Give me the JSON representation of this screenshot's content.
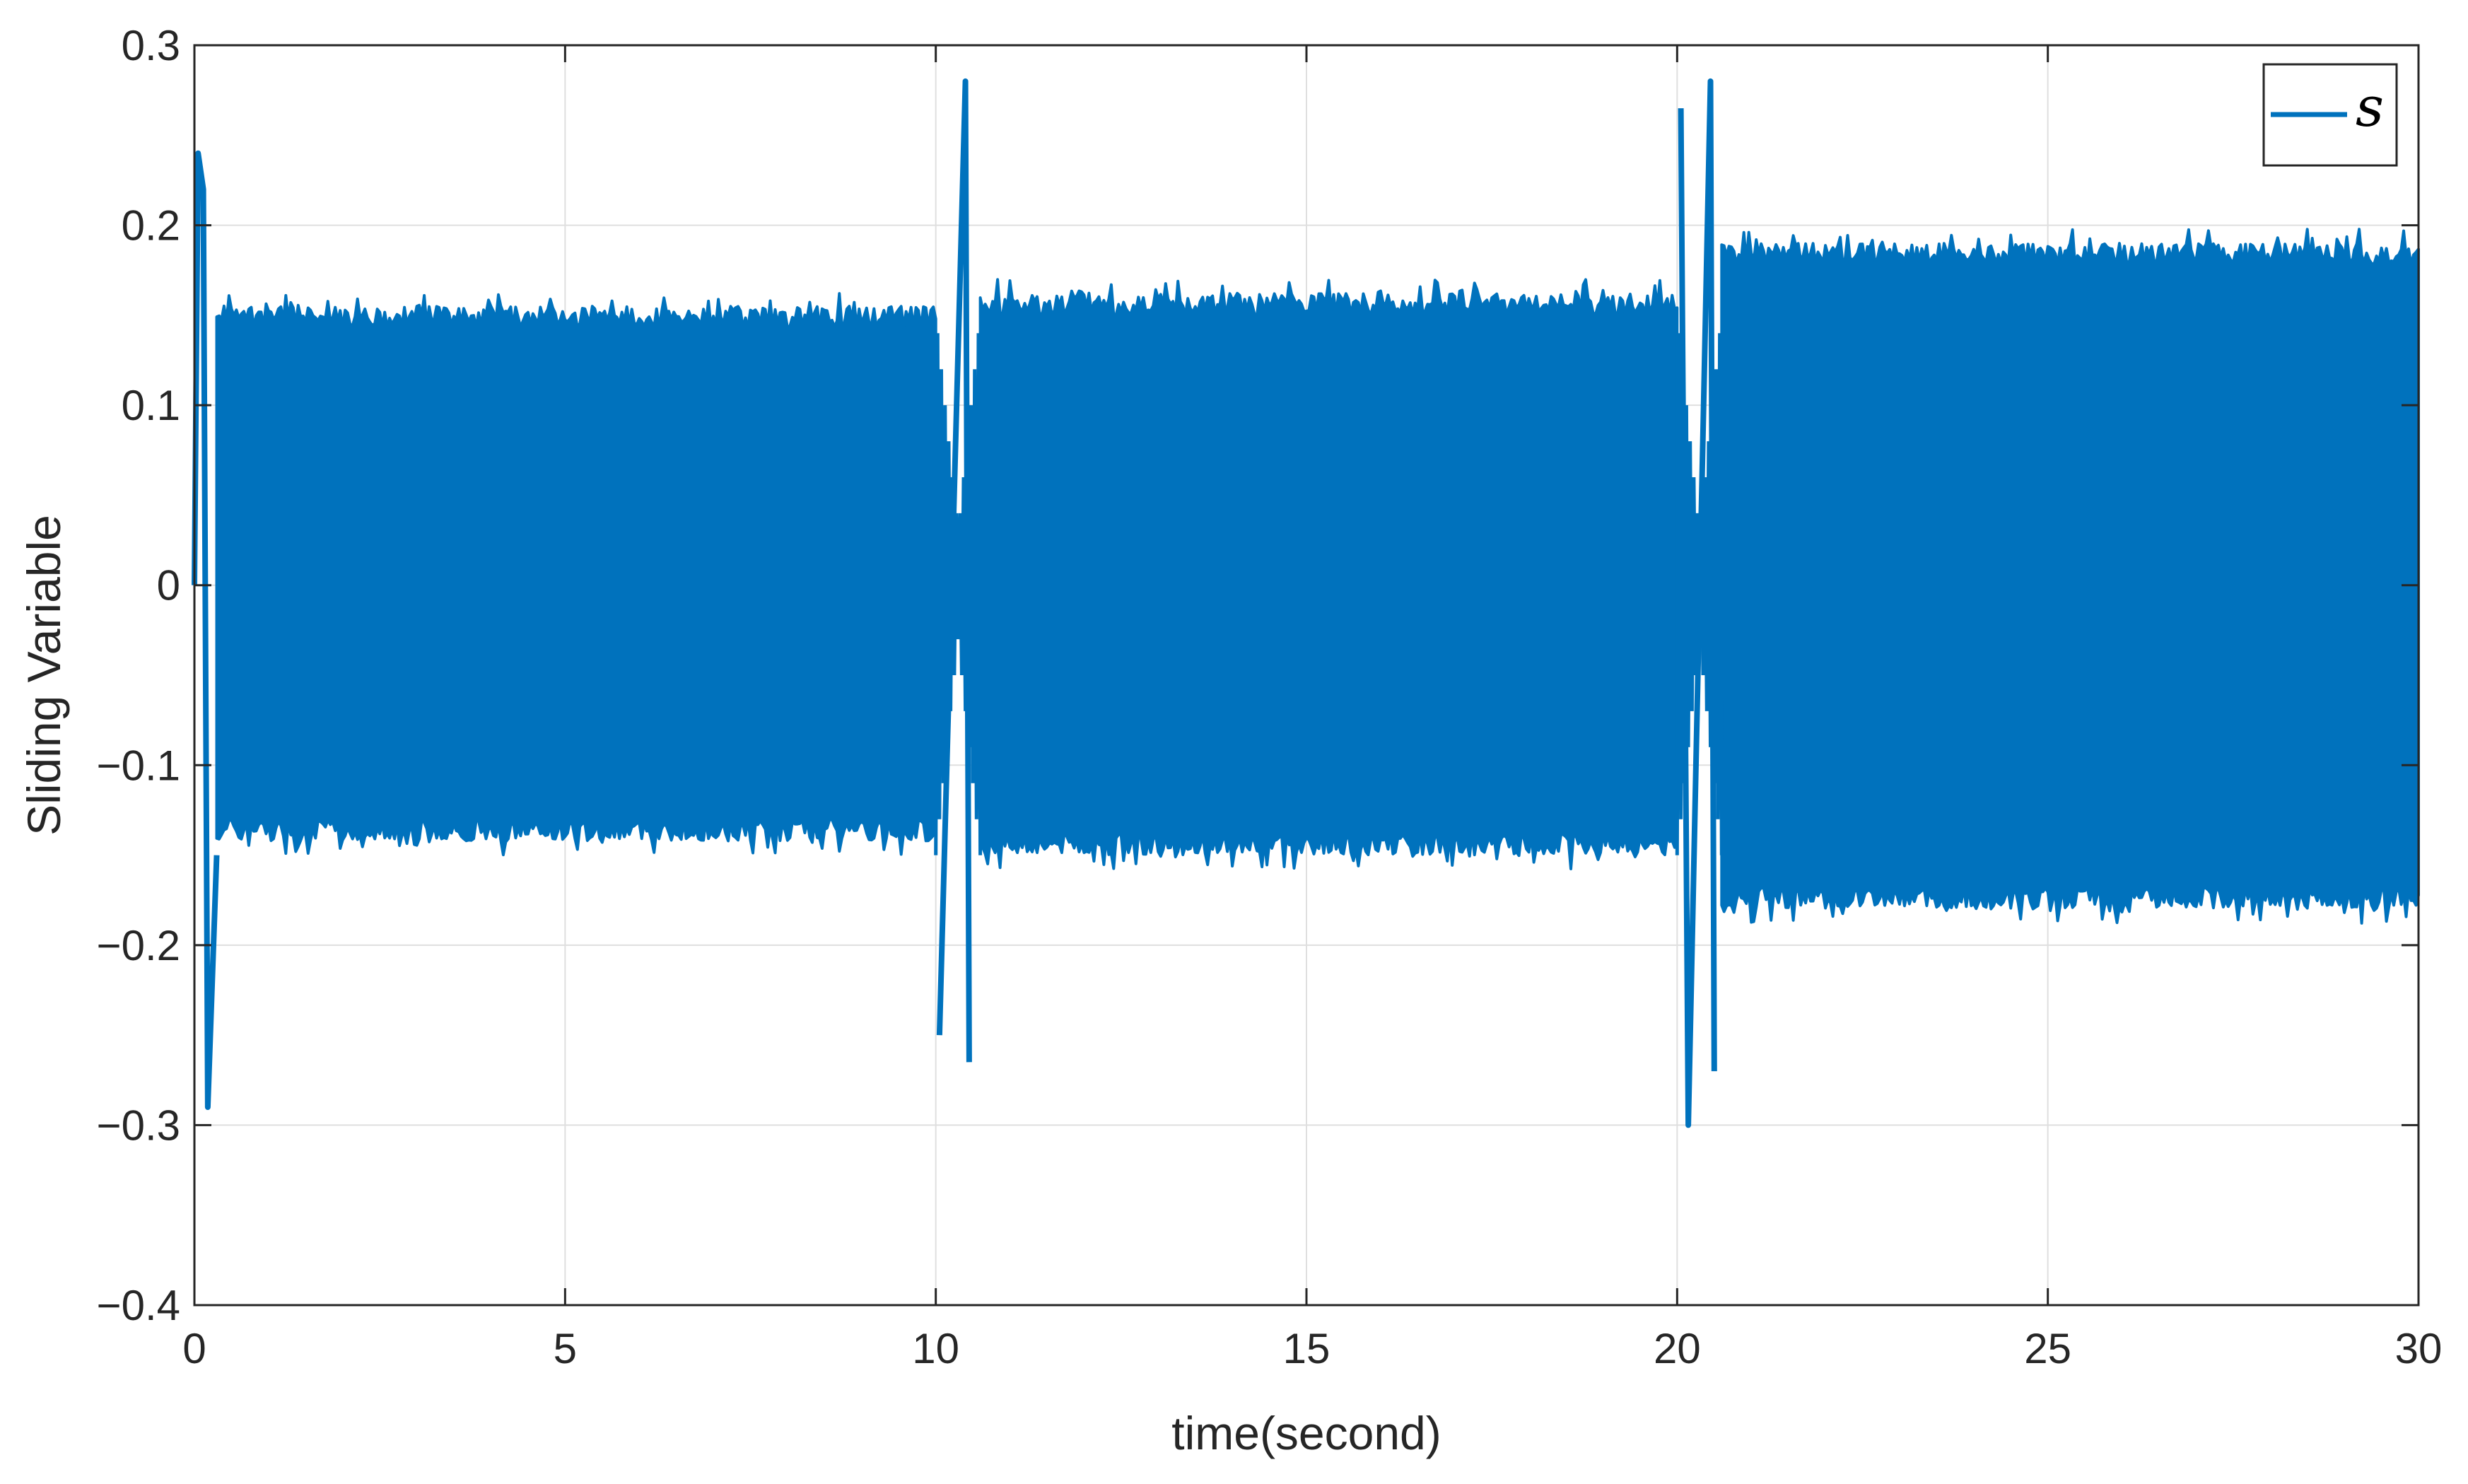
{
  "chart_data": {
    "type": "line",
    "title": "",
    "xlabel": "time(second)",
    "ylabel": "Sliding Variable",
    "xlim": [
      0,
      30
    ],
    "ylim": [
      -0.4,
      0.3
    ],
    "x_ticks": [
      0,
      5,
      10,
      15,
      20,
      25,
      30
    ],
    "x_tick_labels": [
      "0",
      "5",
      "10",
      "15",
      "20",
      "25",
      "30"
    ],
    "y_ticks": [
      0.3,
      0.2,
      0.1,
      0,
      -0.1,
      -0.2,
      -0.3,
      -0.4
    ],
    "y_tick_labels": [
      "0.3",
      "0.2",
      "0.1",
      "0",
      "−0.1",
      "−0.2",
      "−0.3",
      "−0.4"
    ],
    "grid": true,
    "legend_position": "top-right",
    "series": [
      {
        "name": "s",
        "color": "#0072BD",
        "description_points": [
          {
            "x": 0.0,
            "y": 0.0
          },
          {
            "x": 0.05,
            "y": 0.24
          },
          {
            "x": 0.12,
            "y": 0.22
          },
          {
            "x": 0.18,
            "y": -0.29
          },
          {
            "x": 0.3,
            "y": -0.15
          },
          {
            "x": 10.05,
            "y": -0.25
          },
          {
            "x": 10.4,
            "y": 0.28
          },
          {
            "x": 10.45,
            "y": -0.265
          },
          {
            "x": 20.05,
            "y": 0.265
          },
          {
            "x": 20.15,
            "y": -0.3
          },
          {
            "x": 20.45,
            "y": 0.28
          },
          {
            "x": 20.5,
            "y": -0.27
          }
        ],
        "envelope": [
          {
            "x_start": 0.3,
            "x_end": 10.0,
            "upper": 0.155,
            "lower": -0.142
          },
          {
            "x_start": 10.6,
            "x_end": 20.0,
            "upper": 0.162,
            "lower": -0.15
          },
          {
            "x_start": 20.6,
            "x_end": 30.0,
            "upper": 0.19,
            "lower": -0.18
          }
        ]
      }
    ]
  }
}
